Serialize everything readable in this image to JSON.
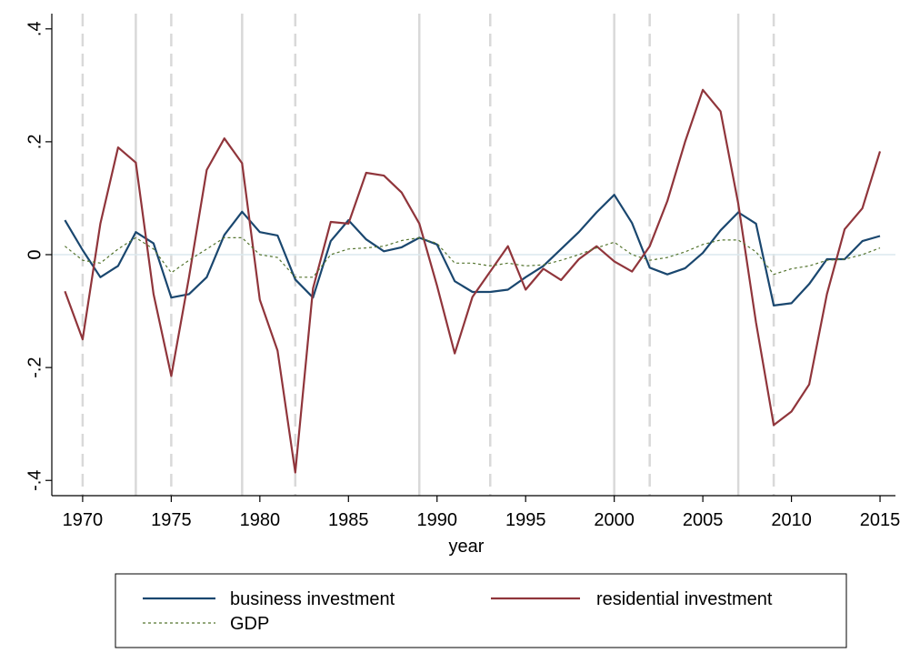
{
  "chart_data": {
    "type": "line",
    "x_label": "year",
    "x": [
      1969,
      1970,
      1971,
      1972,
      1973,
      1974,
      1975,
      1976,
      1977,
      1978,
      1979,
      1980,
      1981,
      1982,
      1983,
      1984,
      1985,
      1986,
      1987,
      1988,
      1989,
      1990,
      1991,
      1992,
      1993,
      1994,
      1995,
      1996,
      1997,
      1998,
      1999,
      2000,
      2001,
      2002,
      2003,
      2004,
      2005,
      2006,
      2007,
      2008,
      2009,
      2010,
      2011,
      2012,
      2013,
      2014,
      2015
    ],
    "series": [
      {
        "name": "business investment",
        "color": "#1a476f",
        "style": "solid",
        "values": [
          0.061,
          0.008,
          -0.04,
          -0.02,
          0.04,
          0.02,
          -0.076,
          -0.07,
          -0.04,
          0.035,
          0.076,
          0.04,
          0.034,
          -0.044,
          -0.076,
          0.024,
          0.061,
          0.027,
          0.006,
          0.013,
          0.03,
          0.018,
          -0.047,
          -0.066,
          -0.066,
          -0.062,
          -0.04,
          -0.02,
          0.01,
          0.04,
          0.075,
          0.106,
          0.056,
          -0.023,
          -0.035,
          -0.024,
          0.003,
          0.043,
          0.075,
          0.055,
          -0.09,
          -0.086,
          -0.052,
          -0.008,
          -0.008,
          0.024,
          0.033
        ]
      },
      {
        "name": "residential investment",
        "color": "#90353b",
        "style": "solid",
        "values": [
          -0.065,
          -0.15,
          0.055,
          0.19,
          0.163,
          -0.07,
          -0.215,
          -0.04,
          0.15,
          0.206,
          0.162,
          -0.08,
          -0.17,
          -0.386,
          -0.06,
          0.058,
          0.055,
          0.145,
          0.14,
          0.11,
          0.055,
          -0.055,
          -0.175,
          -0.075,
          -0.03,
          0.015,
          -0.062,
          -0.025,
          -0.045,
          -0.008,
          0.015,
          -0.012,
          -0.03,
          0.015,
          0.095,
          0.2,
          0.292,
          0.254,
          0.09,
          -0.12,
          -0.302,
          -0.278,
          -0.23,
          -0.07,
          0.045,
          0.082,
          0.183
        ]
      },
      {
        "name": "GDP",
        "color": "#55752f",
        "style": "dotted",
        "values": [
          0.015,
          -0.01,
          -0.015,
          0.01,
          0.03,
          0.01,
          -0.032,
          -0.01,
          0.01,
          0.03,
          0.03,
          0,
          -0.005,
          -0.04,
          -0.04,
          0,
          0.01,
          0.012,
          0.015,
          0.025,
          0.03,
          0.02,
          -0.015,
          -0.015,
          -0.02,
          -0.015,
          -0.02,
          -0.018,
          -0.01,
          0,
          0.012,
          0.022,
          0,
          -0.01,
          -0.005,
          0.005,
          0.018,
          0.026,
          0.026,
          0.005,
          -0.035,
          -0.025,
          -0.02,
          -0.01,
          -0.008,
          0,
          0.012
        ]
      }
    ],
    "solid_xlines": [
      1973,
      1979,
      1989,
      2000,
      2007
    ],
    "dashed_xlines": [
      1970,
      1975,
      1982,
      1993,
      2002,
      2009
    ],
    "yline": 0,
    "xlim": [
      1968.26,
      2015.87
    ],
    "ylim": [
      -0.427,
      0.427
    ],
    "xticks": [
      1970,
      1975,
      1980,
      1985,
      1990,
      1995,
      2000,
      2005,
      2010,
      2015
    ],
    "yticks": [
      {
        "value": -0.4,
        "label": "-.4"
      },
      {
        "value": -0.2,
        "label": "-.2"
      },
      0,
      {
        "value": 0.2,
        "label": ".2"
      },
      {
        "value": 0.4,
        "label": ".4"
      }
    ]
  }
}
